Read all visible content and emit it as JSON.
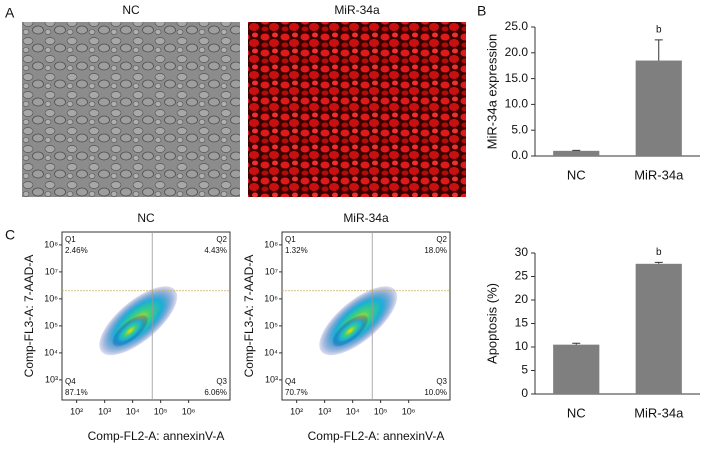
{
  "panel_labels": [
    "A",
    "B",
    "C"
  ],
  "images": [
    {
      "title": "NC"
    },
    {
      "title": "MiR-34a"
    }
  ],
  "chart_data": [
    {
      "type": "bar",
      "ylabel": "MiR-34a expression",
      "categories": [
        "NC",
        "MiR-34a"
      ],
      "values": [
        1.0,
        18.5
      ],
      "errors": [
        0.1,
        4.0
      ],
      "significance": [
        null,
        "b"
      ],
      "color": "#7f7f7f",
      "ylim": [
        0,
        25
      ],
      "yticks": [
        {
          "value": 0,
          "label": "0.0"
        },
        {
          "value": 5,
          "label": "5.0"
        },
        {
          "value": 10,
          "label": "10.0"
        },
        {
          "value": 15,
          "label": "15.0"
        },
        {
          "value": 20,
          "label": "20.0"
        },
        {
          "value": 25,
          "label": "25.0"
        }
      ]
    },
    {
      "type": "flow",
      "title": "NC",
      "xlabel": "Comp-FL2-A: annexinV-A",
      "ylabel": "Comp-FL3-A: 7-AAD-A",
      "log_scale": true,
      "xlim": [
        30,
        30000000
      ],
      "ylim": [
        180,
        300000000
      ],
      "xticks": [
        {
          "value": 100,
          "label": "10²"
        },
        {
          "value": 1000,
          "label": "10³"
        },
        {
          "value": 10000,
          "label": "10⁴"
        },
        {
          "value": 100000,
          "label": "10⁵"
        },
        {
          "value": 1000000,
          "label": "10⁶"
        }
      ],
      "yticks": [
        {
          "value": 1000,
          "label": "10³"
        },
        {
          "value": 10000,
          "label": "10⁴"
        },
        {
          "value": 100000,
          "label": "10⁵"
        },
        {
          "value": 1000000,
          "label": "10⁶"
        },
        {
          "value": 10000000,
          "label": "10⁷"
        },
        {
          "value": 100000000,
          "label": "10⁸"
        }
      ],
      "gate": {
        "x": 50000,
        "y": 2000000
      },
      "quadrants": [
        {
          "name": "Q1",
          "label": "2.46%"
        },
        {
          "name": "Q2",
          "label": "4.43%"
        },
        {
          "name": "Q3",
          "label": "6.06%"
        },
        {
          "name": "Q4",
          "label": "87.1%"
        }
      ]
    },
    {
      "type": "flow",
      "title": "MiR-34a",
      "xlabel": "Comp-FL2-A: annexinV-A",
      "ylabel": "Comp-FL3-A: 7-AAD-A",
      "log_scale": true,
      "xlim": [
        30,
        30000000
      ],
      "ylim": [
        180,
        300000000
      ],
      "xticks": [
        {
          "value": 100,
          "label": "10²"
        },
        {
          "value": 1000,
          "label": "10³"
        },
        {
          "value": 10000,
          "label": "10⁴"
        },
        {
          "value": 100000,
          "label": "10⁵"
        },
        {
          "value": 1000000,
          "label": "10⁶"
        }
      ],
      "yticks": [
        {
          "value": 1000,
          "label": "10³"
        },
        {
          "value": 10000,
          "label": "10⁴"
        },
        {
          "value": 100000,
          "label": "10⁵"
        },
        {
          "value": 1000000,
          "label": "10⁶"
        },
        {
          "value": 10000000,
          "label": "10⁷"
        },
        {
          "value": 100000000,
          "label": "10⁸"
        }
      ],
      "gate": {
        "x": 50000,
        "y": 2000000
      },
      "quadrants": [
        {
          "name": "Q1",
          "label": "1.32%"
        },
        {
          "name": "Q2",
          "label": "18.0%"
        },
        {
          "name": "Q3",
          "label": "10.0%"
        },
        {
          "name": "Q4",
          "label": "70.7%"
        }
      ]
    },
    {
      "type": "bar",
      "ylabel": "Apoptosis (%)",
      "categories": [
        "NC",
        "MiR-34a"
      ],
      "values": [
        10.5,
        27.7
      ],
      "errors": [
        0.3,
        0.3
      ],
      "significance": [
        null,
        "b"
      ],
      "color": "#7f7f7f",
      "ylim": [
        0,
        30
      ],
      "yticks": [
        0,
        5,
        10,
        15,
        20,
        25,
        30
      ]
    }
  ]
}
